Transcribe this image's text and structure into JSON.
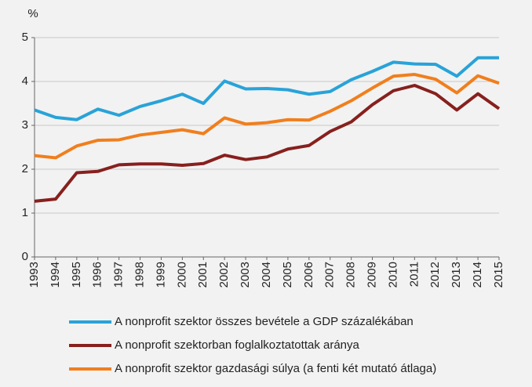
{
  "chart_data": {
    "type": "line",
    "ylabel": "%",
    "categories": [
      "1993",
      "1994",
      "1995",
      "1996",
      "1997",
      "1998",
      "1999",
      "2000",
      "2001",
      "2002",
      "2003",
      "2004",
      "2005",
      "2006",
      "2007",
      "2008",
      "2009",
      "2010",
      "2011",
      "2012",
      "2013",
      "2014",
      "2015"
    ],
    "series": [
      {
        "name": "A nonprofit szektor összes bevétele a GDP százalékában",
        "color": "#29a3d8",
        "values": [
          3.35,
          3.18,
          3.13,
          3.37,
          3.23,
          3.43,
          3.56,
          3.71,
          3.5,
          4.01,
          3.83,
          3.84,
          3.81,
          3.71,
          3.77,
          4.04,
          4.23,
          4.44,
          4.4,
          4.39,
          4.12,
          4.54,
          4.54
        ]
      },
      {
        "name": "A nonprofit szektorban foglalkoztatottak aránya",
        "color": "#87201e",
        "values": [
          1.27,
          1.32,
          1.92,
          1.95,
          2.1,
          2.12,
          2.12,
          2.09,
          2.13,
          2.32,
          2.22,
          2.28,
          2.46,
          2.54,
          2.86,
          3.08,
          3.47,
          3.79,
          3.91,
          3.72,
          3.35,
          3.72,
          3.38
        ]
      },
      {
        "name": "A nonprofit szektor gazdasági súlya (a fenti két mutató átlaga)",
        "color": "#f07f1e",
        "values": [
          2.31,
          2.26,
          2.53,
          2.66,
          2.67,
          2.78,
          2.84,
          2.9,
          2.81,
          3.17,
          3.03,
          3.06,
          3.13,
          3.12,
          3.32,
          3.56,
          3.85,
          4.12,
          4.16,
          4.05,
          3.74,
          4.13,
          3.96
        ]
      }
    ],
    "ylim": [
      0,
      5
    ],
    "yticks": [
      0,
      1,
      2,
      3,
      4,
      5
    ],
    "grid": true
  }
}
